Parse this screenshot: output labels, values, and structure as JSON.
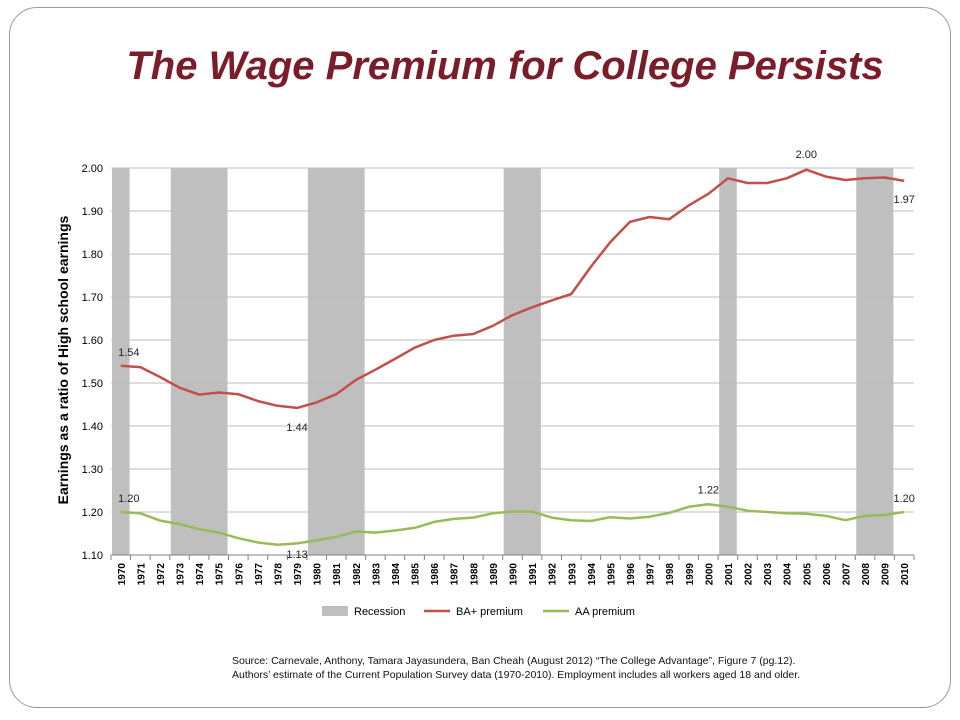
{
  "slide": {
    "title": "The Wage Premium for College Persists",
    "source_line1": "Source: Carnevale, Anthony, Tamara Jayasundera, Ban Cheah (August 2012) “The College Advantage”, Figure 7 (pg.12).",
    "source_line2": "Authors’ estimate of the Current Population Survey data (1970-2010). Employment includes all workers aged 18 and older."
  },
  "chart_data": {
    "type": "line",
    "title": "",
    "xlabel": "",
    "ylabel": "Earnings as a ratio of High school earnings",
    "ylim": [
      1.1,
      2.0
    ],
    "yticks": [
      "1.10",
      "1.20",
      "1.30",
      "1.40",
      "1.50",
      "1.60",
      "1.70",
      "1.80",
      "1.90",
      "2.00"
    ],
    "ytick_values": [
      1.1,
      1.2,
      1.3,
      1.4,
      1.5,
      1.6,
      1.7,
      1.8,
      1.9,
      2.0
    ],
    "x": [
      "1970",
      "1971",
      "1972",
      "1973",
      "1974",
      "1975",
      "1976",
      "1977",
      "1978",
      "1979",
      "1980",
      "1981",
      "1982",
      "1983",
      "1984",
      "1985",
      "1986",
      "1987",
      "1988",
      "1989",
      "1990",
      "1991",
      "1992",
      "1993",
      "1994",
      "1995",
      "1996",
      "1997",
      "1998",
      "1999",
      "2000",
      "2001",
      "2002",
      "2003",
      "2004",
      "2005",
      "2006",
      "2007",
      "2008",
      "2009",
      "2010"
    ],
    "grid": true,
    "legend_position": "bottom",
    "recessions": [
      {
        "start": "1970",
        "end": "1970"
      },
      {
        "start": "1973",
        "end": "1975"
      },
      {
        "start": "1980",
        "end": "1982"
      },
      {
        "start": "1990",
        "end": "1991"
      },
      {
        "start": "2001",
        "end": "2001"
      },
      {
        "start": "2008",
        "end": "2009"
      }
    ],
    "recession_legend": "Recession",
    "recession_color": "#bfbfbf",
    "series": [
      {
        "name": "BA+ premium",
        "color": "#c0504d",
        "values": [
          1.54,
          1.537,
          1.514,
          1.489,
          1.473,
          1.478,
          1.474,
          1.458,
          1.447,
          1.442,
          1.455,
          1.474,
          1.507,
          1.531,
          1.556,
          1.582,
          1.6,
          1.61,
          1.614,
          1.633,
          1.658,
          1.676,
          1.692,
          1.707,
          1.77,
          1.828,
          1.875,
          1.886,
          1.881,
          1.913,
          1.94,
          1.976,
          1.965,
          1.965,
          1.976,
          1.996,
          1.98,
          1.972,
          1.976,
          1.978,
          1.97
        ]
      },
      {
        "name": "AA premium",
        "color": "#9bbb59",
        "values": [
          1.2,
          1.197,
          1.18,
          1.172,
          1.16,
          1.152,
          1.139,
          1.129,
          1.124,
          1.127,
          1.134,
          1.142,
          1.155,
          1.152,
          1.157,
          1.163,
          1.177,
          1.184,
          1.187,
          1.197,
          1.201,
          1.201,
          1.187,
          1.181,
          1.179,
          1.188,
          1.185,
          1.189,
          1.198,
          1.212,
          1.218,
          1.212,
          1.203,
          1.2,
          1.197,
          1.196,
          1.191,
          1.181,
          1.191,
          1.193,
          1.2
        ]
      }
    ],
    "annotations": [
      {
        "text": "1.54",
        "series": 0,
        "x": "1970",
        "value": 1.54
      },
      {
        "text": "1.44",
        "series": 0,
        "x": "1979",
        "value": 1.44
      },
      {
        "text": "2.00",
        "series": 0,
        "x": "2005",
        "value": 2.0
      },
      {
        "text": "1.97",
        "series": 0,
        "x": "2010",
        "value": 1.97
      },
      {
        "text": "1.20",
        "series": 1,
        "x": "1970",
        "value": 1.2
      },
      {
        "text": "1.13",
        "series": 1,
        "x": "1979",
        "value": 1.13
      },
      {
        "text": "1.22",
        "series": 1,
        "x": "2000",
        "value": 1.22
      },
      {
        "text": "1.20",
        "series": 1,
        "x": "2010",
        "value": 1.2
      }
    ]
  }
}
